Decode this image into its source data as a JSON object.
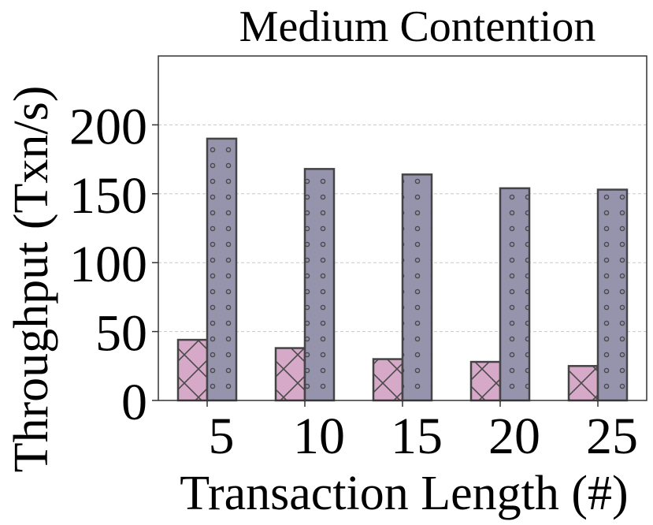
{
  "chart_data": {
    "type": "bar",
    "title": "Medium Contention",
    "xlabel": "Transaction Length (#)",
    "ylabel": "Throughput (Txn/s)",
    "categories": [
      "5",
      "10",
      "15",
      "20",
      "25"
    ],
    "yticks": [
      0,
      50,
      100,
      150,
      200
    ],
    "ylim": [
      0,
      250
    ],
    "grid": "horizontal-dashed",
    "series": [
      {
        "values": [
          44,
          38,
          30,
          28,
          25
        ],
        "color": "#d7a9c9",
        "hatch": "crosshatch-x"
      },
      {
        "values": [
          190,
          168,
          164,
          154,
          153
        ],
        "color": "#9693ad",
        "hatch": "dots"
      }
    ]
  }
}
